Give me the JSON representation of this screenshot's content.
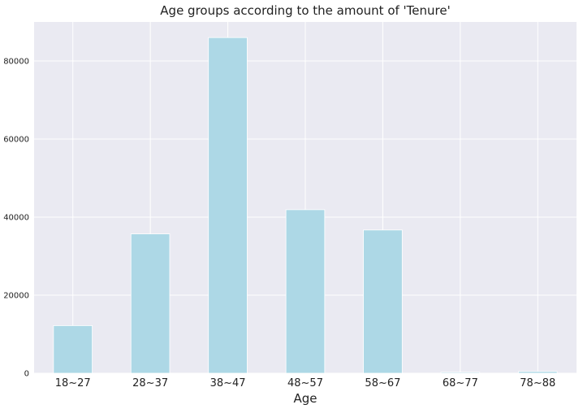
{
  "chart_data": {
    "type": "bar",
    "title": "Age groups according to the amount of 'Tenure'",
    "xlabel": "Age",
    "ylabel": "",
    "categories": [
      "18~27",
      "28~37",
      "38~47",
      "48~57",
      "58~67",
      "68~77",
      "78~88"
    ],
    "values": [
      12200,
      35700,
      86000,
      41900,
      36700,
      250,
      450
    ],
    "ylim": [
      0,
      90000
    ],
    "yticks": [
      0,
      20000,
      40000,
      60000,
      80000
    ],
    "grid": true,
    "colors": {
      "bar": "#add8e6",
      "plot_background": "#eaeaf2",
      "grid": "#ffffff"
    }
  }
}
